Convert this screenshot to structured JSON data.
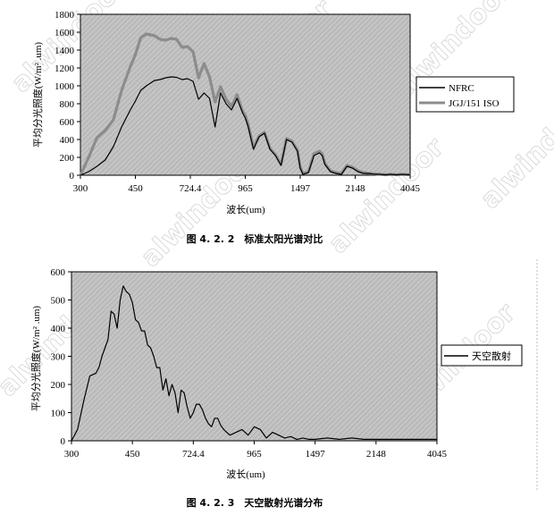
{
  "charts": [
    {
      "ylabel": "平均分光照度(W/m² .um)",
      "xlabel": "波长(um)",
      "caption": "图 4. 2. 2　标准太阳光谱对比",
      "legend": [
        "NFRC",
        "JGJ/151 ISO"
      ]
    },
    {
      "ylabel": "平均分光照度(W/m² .um)",
      "xlabel": "波长(um)",
      "caption": "图 4. 2. 3　天空散射光谱分布",
      "legend": [
        "天空散射"
      ]
    }
  ],
  "watermark": "alwindoor",
  "colors": {
    "plot_bg": "#c4c4c4",
    "hatch": "#a9a9a9",
    "nfrc_line": "#000000",
    "iso_line": "#8c8c8c"
  },
  "chart_data": [
    {
      "type": "line",
      "x_ticks": [
        "300",
        "450",
        "724.4",
        "965",
        "1497",
        "2148",
        "4045"
      ],
      "ylim": [
        0,
        1800
      ],
      "y_ticks": [
        0,
        200,
        400,
        600,
        800,
        1000,
        1200,
        1400,
        1600,
        1800
      ],
      "grid": false,
      "legend_position": "right",
      "x_index_range": [
        0,
        120
      ],
      "series": [
        {
          "name": "NFRC",
          "x": [
            0,
            3,
            6,
            9,
            12,
            15,
            18,
            20,
            22,
            24,
            27,
            29,
            31,
            33,
            35,
            37,
            39,
            41,
            43,
            45,
            47,
            49,
            51,
            53,
            55,
            57,
            59,
            60,
            61,
            63,
            65,
            67,
            69,
            71,
            73,
            75,
            77,
            79,
            80,
            81,
            83,
            85,
            87,
            88,
            89,
            91,
            93,
            95,
            97,
            99,
            100,
            101,
            103,
            105,
            107,
            109,
            111,
            113,
            115,
            117,
            120
          ],
          "values": [
            0,
            40,
            100,
            170,
            320,
            540,
            720,
            830,
            950,
            1000,
            1060,
            1070,
            1090,
            1100,
            1095,
            1070,
            1080,
            1050,
            850,
            920,
            860,
            540,
            920,
            800,
            730,
            860,
            700,
            640,
            550,
            290,
            430,
            470,
            290,
            220,
            110,
            400,
            370,
            270,
            80,
            10,
            30,
            220,
            250,
            220,
            120,
            40,
            20,
            10,
            100,
            80,
            60,
            40,
            20,
            20,
            10,
            10,
            5,
            10,
            5,
            10,
            5
          ]
        },
        {
          "name": "JGJ/151 ISO",
          "x": [
            0,
            3,
            6,
            9,
            12,
            15,
            18,
            20,
            22,
            24,
            27,
            29,
            31,
            33,
            35,
            37,
            39,
            41,
            43,
            45,
            47,
            49,
            51,
            53,
            55,
            57,
            59,
            60,
            61,
            63,
            65,
            67,
            69,
            71,
            73,
            75,
            77,
            79,
            80,
            81,
            83,
            85,
            87,
            88,
            89,
            91,
            93,
            95,
            97,
            99,
            100,
            101,
            103,
            105,
            107,
            109,
            111,
            113,
            115,
            117,
            120
          ],
          "values": [
            0,
            200,
            420,
            500,
            620,
            950,
            1200,
            1350,
            1540,
            1580,
            1560,
            1520,
            1510,
            1530,
            1520,
            1430,
            1440,
            1380,
            1090,
            1250,
            1100,
            820,
            990,
            850,
            770,
            900,
            720,
            670,
            570,
            310,
            440,
            480,
            300,
            230,
            120,
            410,
            380,
            280,
            90,
            20,
            40,
            240,
            270,
            240,
            130,
            50,
            30,
            20,
            110,
            90,
            70,
            50,
            30,
            20,
            15,
            10,
            5,
            10,
            5,
            10,
            5
          ]
        }
      ]
    },
    {
      "type": "line",
      "x_ticks": [
        "300",
        "450",
        "724.4",
        "965",
        "1497",
        "2148",
        "4045"
      ],
      "ylim": [
        0,
        600
      ],
      "y_ticks": [
        0,
        100,
        200,
        300,
        400,
        500,
        600
      ],
      "grid": false,
      "legend_position": "right",
      "x_index_range": [
        0,
        120
      ],
      "series": [
        {
          "name": "天空散射",
          "x": [
            0,
            2,
            4,
            6,
            8,
            9,
            10,
            12,
            13,
            14,
            15,
            16,
            17,
            18,
            19,
            20,
            21,
            22,
            23,
            24,
            25,
            26,
            27,
            28,
            29,
            30,
            31,
            32,
            33,
            34,
            35,
            36,
            37,
            38,
            39,
            40,
            41,
            42,
            43,
            44,
            45,
            46,
            47,
            48,
            49,
            50,
            52,
            54,
            56,
            58,
            60,
            62,
            64,
            66,
            68,
            70,
            72,
            74,
            76,
            78,
            80,
            84,
            88,
            92,
            96,
            100,
            105,
            110,
            120
          ],
          "values": [
            0,
            40,
            140,
            230,
            240,
            260,
            300,
            360,
            460,
            450,
            400,
            500,
            550,
            530,
            520,
            490,
            430,
            420,
            390,
            390,
            340,
            330,
            300,
            260,
            260,
            180,
            220,
            160,
            200,
            170,
            100,
            180,
            170,
            120,
            80,
            100,
            130,
            130,
            110,
            80,
            60,
            50,
            80,
            80,
            55,
            40,
            20,
            30,
            40,
            20,
            50,
            40,
            10,
            30,
            20,
            10,
            15,
            5,
            10,
            5,
            5,
            10,
            5,
            10,
            5,
            5,
            5,
            5,
            5
          ]
        }
      ]
    }
  ]
}
